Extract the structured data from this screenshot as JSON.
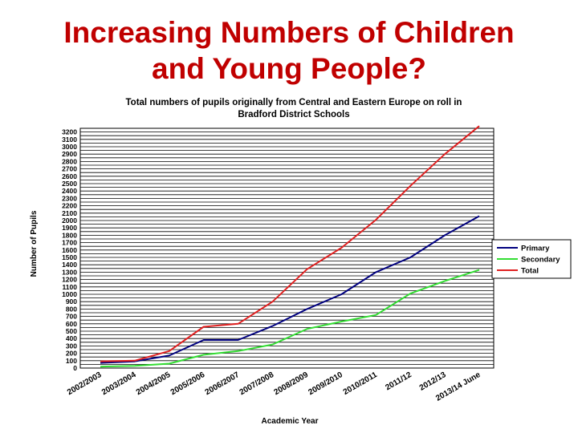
{
  "slide": {
    "title_line1": "Increasing Numbers of Children",
    "title_line2": "and Young People?"
  },
  "chart_data": {
    "type": "line",
    "title": "Total numbers of pupils originally from Central and Eastern Europe on roll in Bradford District Schools",
    "title_lines": [
      "Total numbers of pupils originally from Central and Eastern Europe on roll in",
      "Bradford District Schools"
    ],
    "xlabel": "Academic Year",
    "ylabel": "Number of Pupils",
    "ylim": [
      0,
      3250
    ],
    "ytick_step": 100,
    "yticks": [
      0,
      100,
      200,
      300,
      400,
      500,
      600,
      700,
      800,
      900,
      1000,
      1100,
      1200,
      1300,
      1400,
      1500,
      1600,
      1700,
      1800,
      1900,
      2000,
      2100,
      2200,
      2300,
      2400,
      2500,
      2600,
      2700,
      2800,
      2900,
      3000,
      3100,
      3200
    ],
    "categories": [
      "2002/2003",
      "2003/2004",
      "2004/2005",
      "2005/2006",
      "2006/2007",
      "2007/2008",
      "2008/2009",
      "2009/2010",
      "2010/2011",
      "2011/12",
      "2012/13",
      "2013/14 June"
    ],
    "series": [
      {
        "name": "Primary",
        "color": "#00007f",
        "values": [
          70,
          90,
          170,
          380,
          380,
          570,
          800,
          1000,
          1300,
          1500,
          1800,
          2060
        ]
      },
      {
        "name": "Secondary",
        "color": "#33dd33",
        "values": [
          20,
          30,
          60,
          180,
          230,
          320,
          530,
          630,
          720,
          1010,
          1180,
          1330
        ]
      },
      {
        "name": "Total",
        "color": "#e02020",
        "values": [
          90,
          100,
          230,
          560,
          600,
          900,
          1340,
          1630,
          2010,
          2470,
          2900,
          3300
        ]
      }
    ],
    "legend_position": "right",
    "grid": true
  }
}
